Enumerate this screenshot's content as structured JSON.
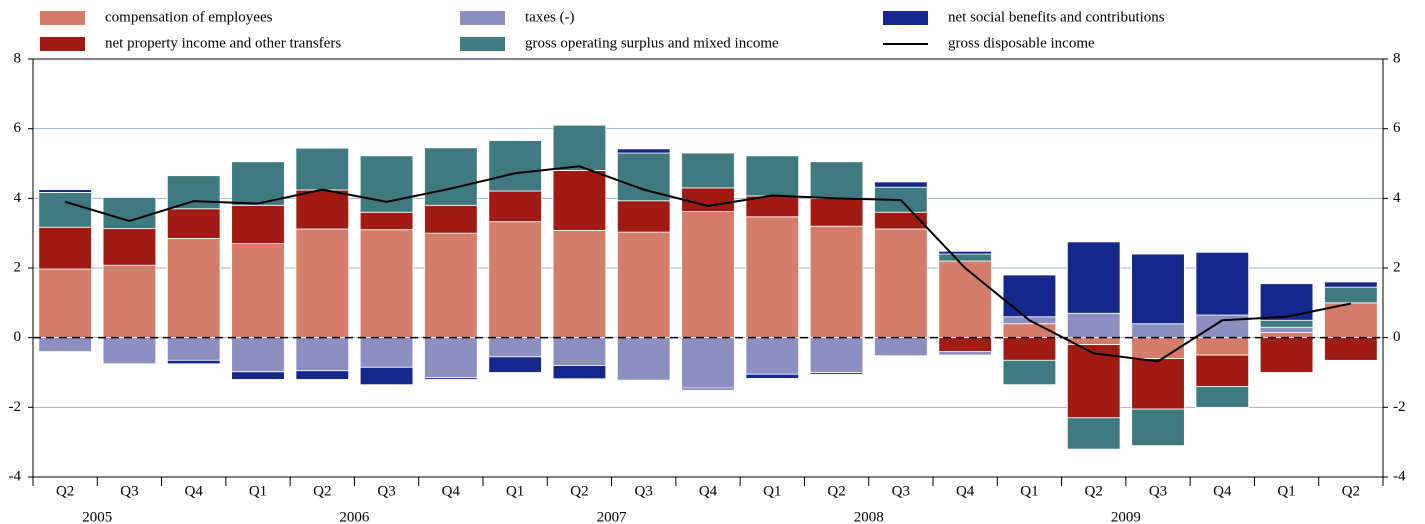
{
  "chart_data": {
    "type": "bar",
    "stacked": true,
    "categories": [
      "Q2",
      "Q3",
      "Q4",
      "Q1",
      "Q2",
      "Q3",
      "Q4",
      "Q1",
      "Q2",
      "Q3",
      "Q4",
      "Q1",
      "Q2",
      "Q3",
      "Q4",
      "Q1",
      "Q2",
      "Q3",
      "Q4",
      "Q1",
      "Q2"
    ],
    "groups": [
      {
        "label": "2005",
        "count": 3
      },
      {
        "label": "2006",
        "count": 4
      },
      {
        "label": "2007",
        "count": 4
      },
      {
        "label": "2008",
        "count": 4
      },
      {
        "label": "2009",
        "count": 4
      },
      {
        "label": null,
        "count": 2
      }
    ],
    "series": [
      {
        "name": "compensation of employees",
        "color": "#d47d6a",
        "values": [
          1.97,
          2.08,
          2.85,
          2.7,
          3.12,
          3.1,
          3.0,
          3.33,
          3.08,
          3.03,
          3.62,
          3.47,
          3.2,
          3.12,
          2.2,
          0.4,
          -0.2,
          -0.6,
          -0.5,
          0.15,
          1.0
        ]
      },
      {
        "name": "net property income and other transfers",
        "color": "#a01b14",
        "values": [
          1.2,
          1.05,
          0.85,
          1.1,
          1.12,
          0.5,
          0.8,
          0.88,
          1.72,
          0.9,
          0.68,
          0.6,
          0.8,
          0.48,
          -0.4,
          -0.65,
          -2.1,
          -1.45,
          -0.9,
          -1.0,
          -0.65
        ]
      },
      {
        "name": "taxes (-)",
        "color": "#8e8fc1",
        "values": [
          -0.4,
          -0.75,
          -0.65,
          -0.98,
          -0.95,
          -0.85,
          -1.15,
          -0.55,
          -0.8,
          -1.22,
          -1.45,
          -1.05,
          -1.0,
          -0.52,
          -0.1,
          0.2,
          0.7,
          0.4,
          0.65,
          0.15,
          0
        ]
      },
      {
        "name": "gross operating surplus and mixed income",
        "color": "#3e7a80",
        "values": [
          1.0,
          0.9,
          0.95,
          1.25,
          1.2,
          1.62,
          1.65,
          1.45,
          1.3,
          1.37,
          1.0,
          1.15,
          1.05,
          0.72,
          0.2,
          -0.7,
          -0.9,
          -1.05,
          -0.6,
          0.2,
          0.45
        ]
      },
      {
        "name": "net social benefits and contributions",
        "color": "#15278a",
        "values": [
          0.08,
          0.02,
          -0.1,
          -0.22,
          -0.25,
          -0.5,
          -0.05,
          -0.45,
          -0.38,
          0.12,
          -0.05,
          -0.12,
          -0.05,
          0.15,
          0.08,
          1.2,
          2.05,
          2.0,
          1.8,
          1.05,
          0.15
        ]
      },
      {
        "name": "gross disposable income",
        "type": "line",
        "color": "#000000",
        "values": [
          3.9,
          3.35,
          3.92,
          3.85,
          4.25,
          3.9,
          4.28,
          4.72,
          4.92,
          4.25,
          3.78,
          4.08,
          4.0,
          3.95,
          2.0,
          0.5,
          -0.45,
          -0.68,
          0.5,
          0.6,
          0.98
        ]
      }
    ],
    "ylim": [
      -4,
      8
    ],
    "yticks": [
      -4,
      -2,
      0,
      2,
      4,
      6,
      8
    ],
    "y2lim": [
      -4,
      8
    ],
    "y2ticks": [
      -4,
      -2,
      0,
      2,
      4,
      6,
      8
    ],
    "grid": true
  }
}
